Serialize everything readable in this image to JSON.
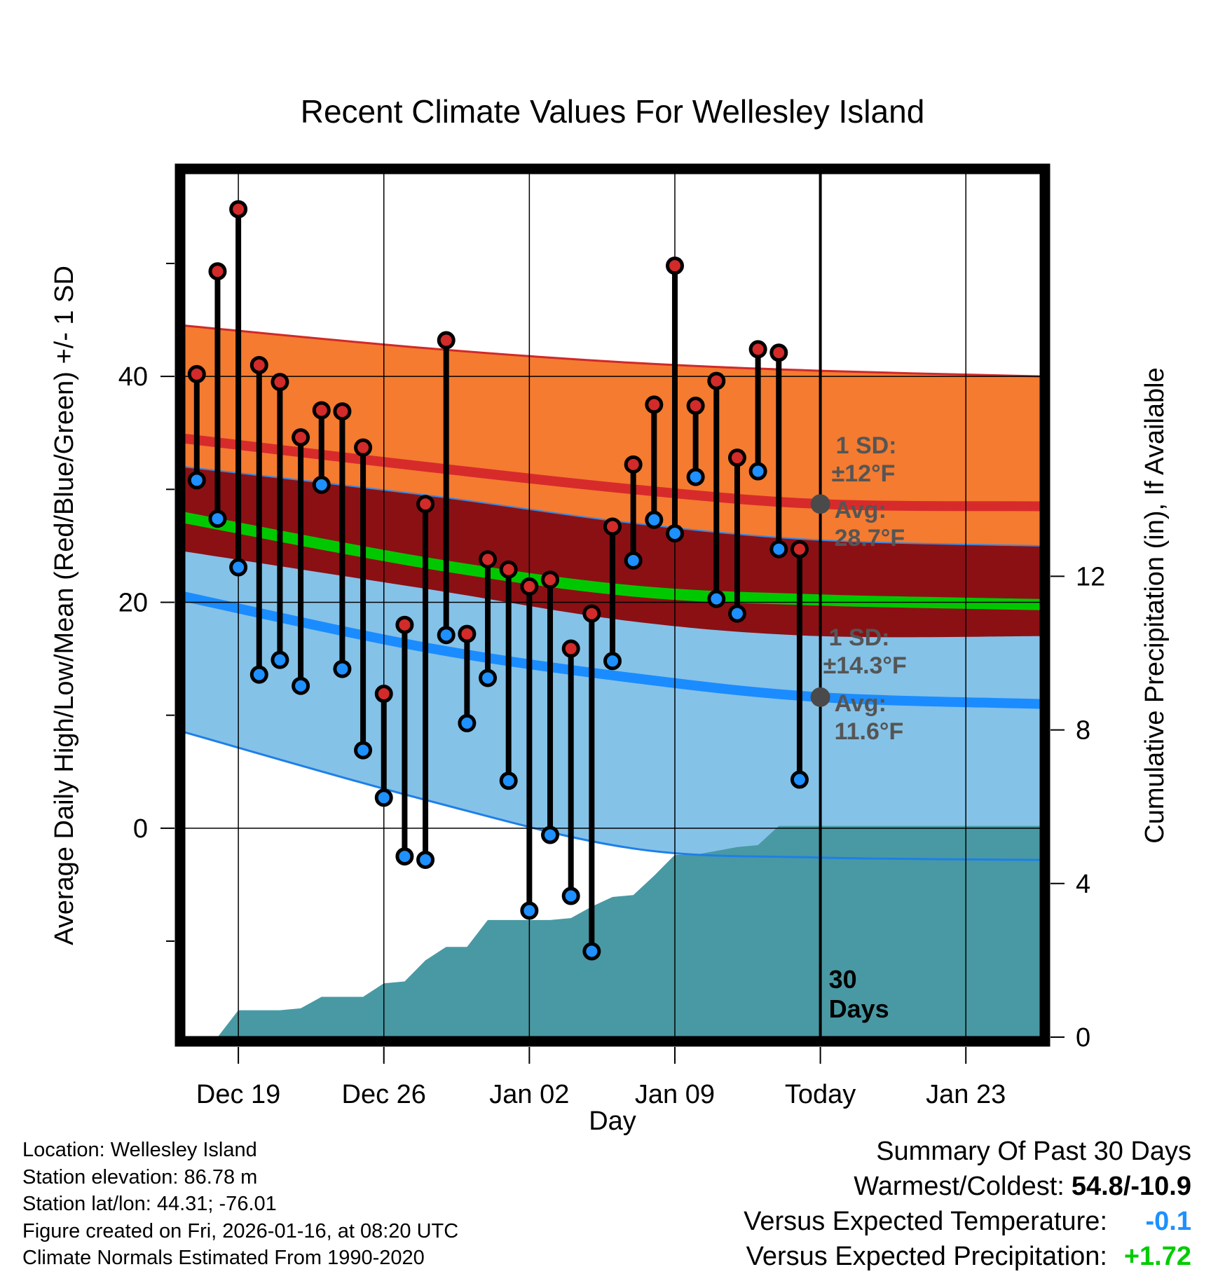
{
  "chart_data": {
    "type": "temperature-range-with-precipitation",
    "title": "Recent Climate Values For Wellesley Island",
    "xlabel": "Day",
    "ylabel_left": "Average Daily High/Low/Mean (Red/Blue/Green) +/- 1 SD",
    "ylabel_right": "Cumulative Precipitation (in), If Available",
    "y_left_range": [
      -18.5,
      58
    ],
    "y_left_ticks": [
      0,
      20,
      40
    ],
    "y_left_minor_ticks": [
      -10,
      10,
      30,
      50
    ],
    "y_right_range": [
      0,
      22.5
    ],
    "y_right_ticks": [
      0,
      4,
      8,
      12
    ],
    "x_range": [
      -1.6,
      39.6
    ],
    "x_ticks": [
      {
        "day": 1,
        "label": "Dec 19"
      },
      {
        "day": 8,
        "label": "Dec 26"
      },
      {
        "day": 15,
        "label": "Jan 02"
      },
      {
        "day": 22,
        "label": "Jan 09"
      },
      {
        "day": 29,
        "label": "Today"
      },
      {
        "day": 36,
        "label": "Jan 23"
      }
    ],
    "today_day": 29,
    "period_label": [
      "30",
      "Days"
    ],
    "normals": {
      "days": [
        -1.6,
        10,
        20,
        29,
        39.6
      ],
      "high_avg": [
        34.5,
        32.0,
        30.0,
        28.7,
        28.5
      ],
      "high_upper": [
        44.5,
        42.5,
        41.2,
        40.5,
        40.0
      ],
      "high_lower": [
        24.5,
        21.2,
        18.3,
        17.0,
        17.0
      ],
      "low_avg": [
        20.5,
        16.0,
        13.3,
        11.6,
        11.0
      ],
      "low_upper": [
        32.0,
        29.5,
        27.0,
        25.5,
        25.0
      ],
      "low_lower": [
        8.5,
        2.5,
        -1.8,
        -2.6,
        -2.8
      ],
      "mean_avg": [
        27.5,
        23.5,
        21.0,
        20.2,
        19.8
      ]
    },
    "annotations": {
      "high_sd": "1 SD:",
      "high_sd_val": "±12°F",
      "high_avg_label": "Avg:",
      "high_avg_val": "28.7°F",
      "low_sd": "1 SD:",
      "low_sd_val": "±14.3°F",
      "low_avg_label": "Avg:",
      "low_avg_val": "11.6°F"
    },
    "daily": [
      {
        "day": -1,
        "high": 40.2,
        "low": 30.8
      },
      {
        "day": 0,
        "high": 49.3,
        "low": 27.4
      },
      {
        "day": 1,
        "high": 54.8,
        "low": 23.1
      },
      {
        "day": 2,
        "high": 41.0,
        "low": 13.6
      },
      {
        "day": 3,
        "high": 39.5,
        "low": 14.9
      },
      {
        "day": 4,
        "high": 34.6,
        "low": 12.6
      },
      {
        "day": 5,
        "high": 37.0,
        "low": 30.4
      },
      {
        "day": 6,
        "high": 36.9,
        "low": 14.1
      },
      {
        "day": 7,
        "high": 33.7,
        "low": 6.9
      },
      {
        "day": 8,
        "high": 11.9,
        "low": 2.7
      },
      {
        "day": 9,
        "high": 18.0,
        "low": -2.5
      },
      {
        "day": 10,
        "high": 28.7,
        "low": -2.8
      },
      {
        "day": 11,
        "high": 43.2,
        "low": 17.1
      },
      {
        "day": 12,
        "high": 17.2,
        "low": 9.3
      },
      {
        "day": 13,
        "high": 23.8,
        "low": 13.3
      },
      {
        "day": 14,
        "high": 22.9,
        "low": 4.2
      },
      {
        "day": 15,
        "high": 21.4,
        "low": -7.3
      },
      {
        "day": 16,
        "high": 22.0,
        "low": -0.6
      },
      {
        "day": 17,
        "high": 15.9,
        "low": -6.0
      },
      {
        "day": 18,
        "high": 19.0,
        "low": -10.9
      },
      {
        "day": 19,
        "high": 26.7,
        "low": 14.8
      },
      {
        "day": 20,
        "high": 32.2,
        "low": 23.7
      },
      {
        "day": 21,
        "high": 37.5,
        "low": 27.3
      },
      {
        "day": 22,
        "high": 49.8,
        "low": 26.1
      },
      {
        "day": 23,
        "high": 37.4,
        "low": 31.1
      },
      {
        "day": 24,
        "high": 39.6,
        "low": 20.3
      },
      {
        "day": 25,
        "high": 32.8,
        "low": 19.0
      },
      {
        "day": 26,
        "high": 42.4,
        "low": 31.6
      },
      {
        "day": 27,
        "high": 42.1,
        "low": 24.7
      },
      {
        "day": 28,
        "high": 24.7,
        "low": 4.3
      }
    ],
    "precip_cumulative": {
      "days": [
        -1.6,
        0,
        1,
        2,
        3,
        4,
        5,
        6,
        7,
        8,
        9,
        10,
        11,
        12,
        13,
        14,
        15,
        16,
        17,
        18,
        19,
        20,
        21,
        22,
        23,
        24,
        25,
        26,
        27,
        28,
        29,
        39.6
      ],
      "values": [
        0,
        0,
        0.7,
        0.7,
        0.7,
        0.75,
        1.05,
        1.05,
        1.05,
        1.4,
        1.45,
        2.0,
        2.35,
        2.35,
        3.05,
        3.05,
        3.05,
        3.05,
        3.1,
        3.4,
        3.65,
        3.7,
        4.2,
        4.75,
        4.75,
        4.85,
        4.95,
        5.0,
        5.5,
        5.5,
        5.5,
        5.5
      ]
    }
  },
  "info": {
    "location": "Location: Wellesley Island",
    "elevation": "Station elevation: 86.78 m",
    "latlon": "Station lat/lon: 44.31; -76.01",
    "created": "Figure created on Fri, 2026-01-16, at 08:20 UTC",
    "normals": "Climate Normals Estimated From 1990-2020"
  },
  "summary": {
    "title": "Summary Of Past 30 Days",
    "warmest_coldest_label": "Warmest/Coldest:",
    "warmest_coldest_value": "54.8/-10.9",
    "temp_label": "Versus Expected Temperature:",
    "temp_value": "-0.1",
    "precip_label": "Versus Expected Precipitation:",
    "precip_value": "+1.72",
    "colors": {
      "temp": "#1e90ff",
      "precip": "#00cc00"
    }
  }
}
